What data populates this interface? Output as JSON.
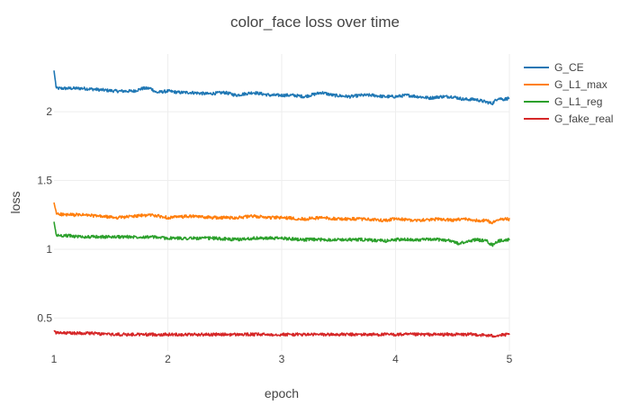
{
  "chart_data": {
    "type": "line",
    "title": "color_face loss over time",
    "xlabel": "epoch",
    "ylabel": "loss",
    "xlim": [
      1,
      5
    ],
    "ylim": [
      0.26,
      2.42
    ],
    "grid": true,
    "legend_position": "top-right",
    "x_ticks": [
      {
        "value": 1,
        "label": "1"
      },
      {
        "value": 2,
        "label": "2"
      },
      {
        "value": 3,
        "label": "3"
      },
      {
        "value": 4,
        "label": "4"
      },
      {
        "value": 5,
        "label": "5"
      }
    ],
    "y_ticks": [
      {
        "value": 0.5,
        "label": "0.5"
      },
      {
        "value": 1,
        "label": "1"
      },
      {
        "value": 1.5,
        "label": "1.5"
      },
      {
        "value": 2,
        "label": "2"
      }
    ],
    "series": [
      {
        "name": "G_CE",
        "color": "#1f77b4",
        "x": [
          1.0,
          1.02,
          1.1,
          1.25,
          1.4,
          1.55,
          1.7,
          1.78,
          1.85,
          1.9,
          2.0,
          2.1,
          2.2,
          2.35,
          2.5,
          2.6,
          2.75,
          2.9,
          3.0,
          3.1,
          3.2,
          3.3,
          3.35,
          3.45,
          3.6,
          3.7,
          3.8,
          3.9,
          4.0,
          4.1,
          4.2,
          4.3,
          4.4,
          4.5,
          4.6,
          4.7,
          4.8,
          4.85,
          4.9,
          4.95,
          5.0
        ],
        "y": [
          2.3,
          2.17,
          2.17,
          2.17,
          2.16,
          2.15,
          2.15,
          2.17,
          2.17,
          2.14,
          2.15,
          2.14,
          2.14,
          2.13,
          2.14,
          2.12,
          2.14,
          2.12,
          2.12,
          2.12,
          2.11,
          2.13,
          2.14,
          2.12,
          2.11,
          2.12,
          2.12,
          2.11,
          2.11,
          2.12,
          2.11,
          2.1,
          2.11,
          2.11,
          2.09,
          2.09,
          2.07,
          2.06,
          2.1,
          2.09,
          2.1
        ]
      },
      {
        "name": "G_L1_max",
        "color": "#ff7f0e",
        "x": [
          1.0,
          1.02,
          1.1,
          1.25,
          1.4,
          1.55,
          1.7,
          1.85,
          2.0,
          2.2,
          2.4,
          2.6,
          2.75,
          2.9,
          3.0,
          3.2,
          3.35,
          3.5,
          3.7,
          3.9,
          4.0,
          4.2,
          4.4,
          4.5,
          4.6,
          4.7,
          4.8,
          4.85,
          4.9,
          5.0
        ],
        "y": [
          1.34,
          1.26,
          1.25,
          1.25,
          1.24,
          1.23,
          1.24,
          1.25,
          1.23,
          1.24,
          1.23,
          1.23,
          1.24,
          1.23,
          1.23,
          1.22,
          1.23,
          1.22,
          1.22,
          1.21,
          1.22,
          1.21,
          1.22,
          1.21,
          1.22,
          1.21,
          1.21,
          1.19,
          1.22,
          1.22
        ]
      },
      {
        "name": "G_L1_reg",
        "color": "#2ca02c",
        "x": [
          1.0,
          1.02,
          1.1,
          1.25,
          1.4,
          1.55,
          1.7,
          1.85,
          2.0,
          2.2,
          2.4,
          2.6,
          2.75,
          2.9,
          3.0,
          3.2,
          3.35,
          3.5,
          3.7,
          3.9,
          4.0,
          4.2,
          4.4,
          4.5,
          4.55,
          4.7,
          4.8,
          4.85,
          4.9,
          5.0
        ],
        "y": [
          1.2,
          1.1,
          1.1,
          1.09,
          1.09,
          1.09,
          1.09,
          1.09,
          1.08,
          1.08,
          1.08,
          1.07,
          1.08,
          1.08,
          1.08,
          1.07,
          1.07,
          1.07,
          1.07,
          1.06,
          1.07,
          1.07,
          1.07,
          1.06,
          1.04,
          1.07,
          1.06,
          1.03,
          1.06,
          1.07
        ]
      },
      {
        "name": "G_fake_real",
        "color": "#d62728",
        "x": [
          1.0,
          1.02,
          1.1,
          1.3,
          1.5,
          1.7,
          1.9,
          2.1,
          2.3,
          2.5,
          2.7,
          2.9,
          3.1,
          3.3,
          3.5,
          3.7,
          3.9,
          4.1,
          4.3,
          4.5,
          4.7,
          4.85,
          5.0
        ],
        "y": [
          0.41,
          0.39,
          0.39,
          0.39,
          0.38,
          0.38,
          0.38,
          0.38,
          0.38,
          0.38,
          0.38,
          0.38,
          0.38,
          0.38,
          0.38,
          0.38,
          0.38,
          0.38,
          0.38,
          0.38,
          0.38,
          0.37,
          0.38
        ]
      }
    ]
  }
}
